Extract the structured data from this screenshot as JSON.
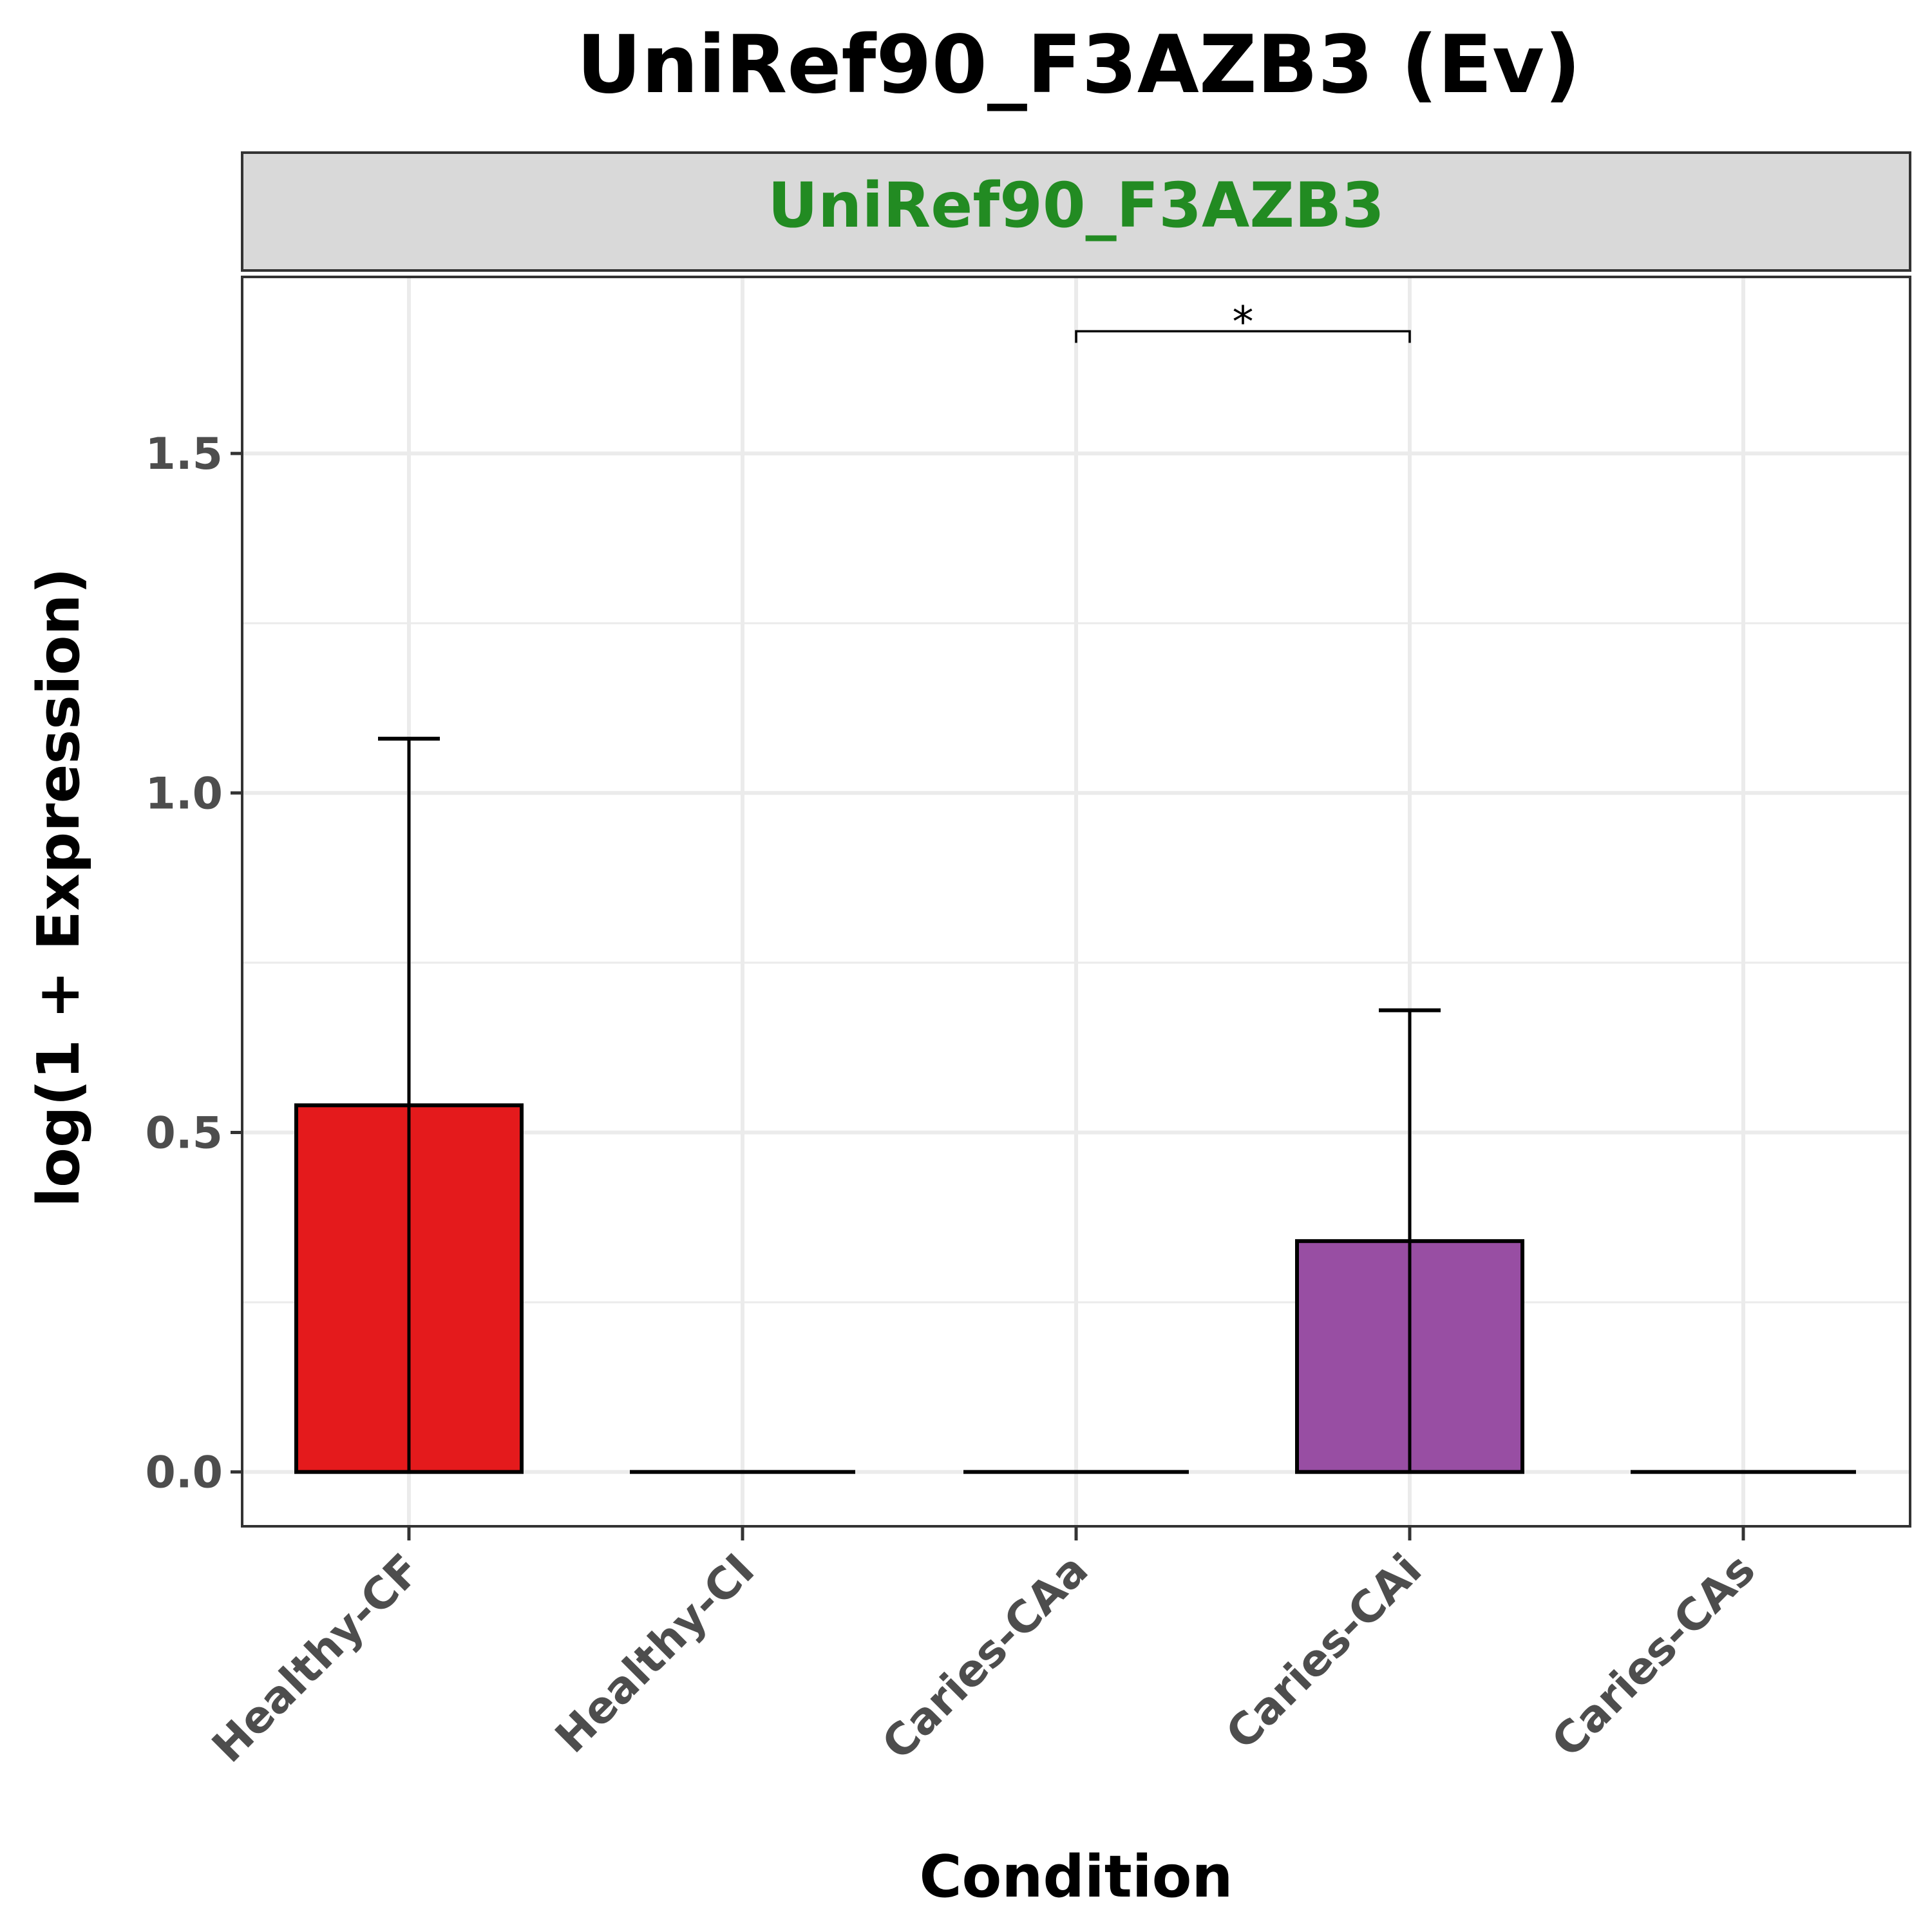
{
  "chart_data": {
    "type": "bar",
    "title": "UniRef90_F3AZB3 (Ev)",
    "facet_label": "UniRef90_F3AZB3",
    "xlabel": "Condition",
    "ylabel": "log(1 + Expression)",
    "categories": [
      "Healthy-CF",
      "Healthy-CI",
      "Caries-CAa",
      "Caries-CAi",
      "Caries-CAs"
    ],
    "values": [
      0.54,
      0.0,
      0.0,
      0.34,
      0.0
    ],
    "error_upper": [
      1.08,
      0.0,
      0.0,
      0.68,
      0.0
    ],
    "colors": [
      "#e41a1c",
      "#377eb8",
      "#4daf4a",
      "#984ea3",
      "#ff7f00"
    ],
    "ylim": [
      -0.08,
      1.76
    ],
    "y_ticks": [
      0.0,
      0.5,
      1.0,
      1.5
    ],
    "y_tick_labels": [
      "0.0",
      "0.5",
      "1.0",
      "1.5"
    ],
    "y_minor_ticks": [
      0.25,
      0.75,
      1.25
    ],
    "grid": true,
    "significance": [
      {
        "from": "Caries-CAa",
        "to": "Caries-CAi",
        "y": 1.68,
        "label": "*"
      }
    ],
    "facet_strip_bg": "#d9d9d9",
    "facet_text_color": "#228b22"
  }
}
